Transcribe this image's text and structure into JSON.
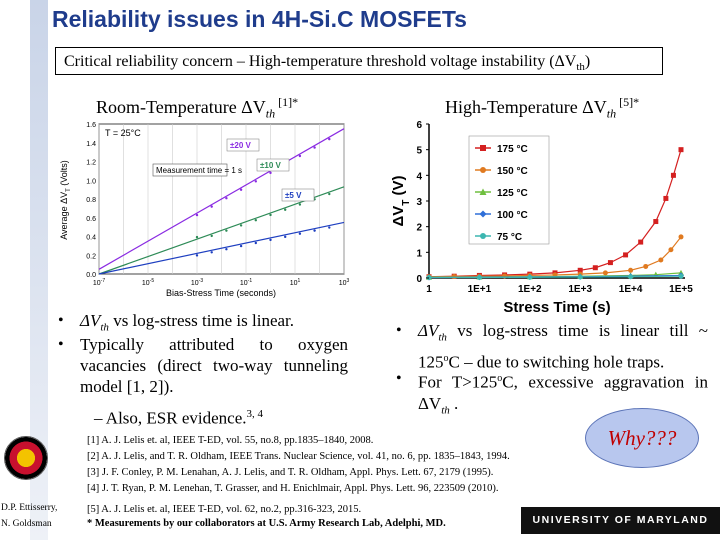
{
  "title": "Reliability issues in 4H-Si.C MOSFETs",
  "banner": "Critical reliability concern – High-temperature threshold voltage instability (ΔV",
  "banner_sub": "th",
  "banner_end": ")",
  "left": {
    "subtitle_pre": "Room-Temperature ΔV",
    "subtitle_sub": "th",
    "subtitle_sup": " [1]*",
    "bullets": [
      {
        "pre": "ΔV",
        "sub": "th",
        "post": "  vs log-stress time is linear."
      },
      {
        "pre": "",
        "sub": "",
        "post": "Typically attributed to oxygen vacancies (direct two-way tunneling model [1, 2])."
      }
    ],
    "dash_item": "–  Also, ESR evidence.",
    "dash_sup": "3, 4"
  },
  "right": {
    "subtitle_pre": "High-Temperature ΔV",
    "subtitle_sub": "th",
    "subtitle_sup": " [5]*",
    "bullet1_pre": "ΔV",
    "bullet1_sub": "th",
    "bullet1_post": "  vs log-stress time is linear till ~ 125",
    "bullet1_sup": "o",
    "bullet1_end": "C – due to switching hole traps.",
    "bullet2_pre": "For T>125",
    "bullet2_sup": "o",
    "bullet2_mid": "C, excessive aggravation in ΔV",
    "bullet2_sub": "th",
    "bullet2_end": " ."
  },
  "why": "Why???",
  "refs": [
    "[1] A. J. Lelis et. al, IEEE T-ED, vol. 55, no.8, pp.1835–1840, 2008.",
    "[2] A. J. Lelis, and T. R. Oldham, IEEE Trans. Nuclear Science, vol. 41, no. 6, pp. 1835–1843, 1994.",
    "[3] J. F. Conley, P. M. Lenahan, A. J. Lelis, and T. R. Oldham, Appl. Phys. Lett. 67, 2179 (1995).",
    "[4] J. T. Ryan, P. M. Lenehan, T. Grasser, and H. Enichlmair, Appl. Phys. Lett. 96, 223509 (2010)."
  ],
  "ref5": "[5] A. J. Lelis et. al, IEEE T-ED, vol. 62, no.2, pp.316-323, 2015.",
  "note": "* Measurements by our collaborators at U.S. Army Research Lab, Adelphi, MD.",
  "footer": "UNIVERSITY OF MARYLAND",
  "author_lines": [
    "D.P. Ettisserry,",
    "N. Goldsman"
  ],
  "colors": {
    "title": "#1f3c8c",
    "why_bg": "#b8c7ee",
    "why_text": "#c00000"
  },
  "chart_data": [
    {
      "type": "line",
      "xlabel": "Bias-Stress Time (seconds)",
      "ylabel": "Average ΔV",
      "ylabel_sub": "T",
      "ylabel_unit": " (Volts)",
      "xlim": [
        -7,
        3
      ],
      "ylim": [
        0,
        1.6
      ],
      "x_ticks": [
        {
          "base": "10",
          "exp": "-7"
        },
        {
          "base": "10",
          "exp": "-5"
        },
        {
          "base": "10",
          "exp": "-3"
        },
        {
          "base": "10",
          "exp": "-1"
        },
        {
          "base": "10",
          "exp": "1"
        },
        {
          "base": "10",
          "exp": "3"
        }
      ],
      "y_ticks": [
        "0.0",
        "0.2",
        "0.4",
        "0.6",
        "0.8",
        "1.0",
        "1.2",
        "1.4",
        "1.6"
      ],
      "annotations": {
        "temp": "T = 25°C",
        "meas": "Measurement time = 1 s"
      },
      "series": [
        {
          "name": "±20 V",
          "color": "#8a2be2",
          "x": [
            -7,
            3
          ],
          "y": [
            0.05,
            1.55
          ]
        },
        {
          "name": "±10 V",
          "color": "#2e8b57",
          "x": [
            -7,
            3
          ],
          "y": [
            0.0,
            0.93
          ]
        },
        {
          "name": "±5 V",
          "color": "#1e3fc0",
          "x": [
            -7,
            3
          ],
          "y": [
            0.0,
            0.55
          ]
        }
      ]
    },
    {
      "type": "line",
      "xlabel": "Stress Time (s)",
      "ylabel": "ΔV",
      "ylabel_sub": "T",
      "ylabel_unit": " (V)",
      "xlim": [
        0,
        5
      ],
      "ylim": [
        0,
        6
      ],
      "x_ticks": [
        "1",
        "1E+1",
        "1E+2",
        "1E+3",
        "1E+4",
        "1E+5"
      ],
      "y_ticks": [
        "0",
        "1",
        "2",
        "3",
        "4",
        "5",
        "6"
      ],
      "series": [
        {
          "name": "175 °C",
          "color": "#d42020",
          "marker": "square",
          "x": [
            0,
            0.5,
            1,
            1.5,
            2,
            2.5,
            3,
            3.3,
            3.6,
            3.9,
            4.2,
            4.5,
            4.7,
            4.85,
            5.0
          ],
          "y": [
            0.05,
            0.07,
            0.1,
            0.12,
            0.15,
            0.2,
            0.3,
            0.4,
            0.6,
            0.9,
            1.4,
            2.2,
            3.1,
            4.0,
            5.0
          ]
        },
        {
          "name": "150 °C",
          "color": "#e07a20",
          "marker": "circle",
          "x": [
            0,
            0.5,
            1,
            1.5,
            2,
            2.5,
            3,
            3.5,
            4,
            4.3,
            4.6,
            4.8,
            5.0
          ],
          "y": [
            0.05,
            0.06,
            0.07,
            0.08,
            0.1,
            0.12,
            0.15,
            0.2,
            0.3,
            0.45,
            0.7,
            1.1,
            1.6
          ]
        },
        {
          "name": "125 °C",
          "color": "#6fbf3f",
          "marker": "triangle",
          "x": [
            0,
            1,
            2,
            3,
            4,
            4.5,
            5.0
          ],
          "y": [
            0.03,
            0.04,
            0.05,
            0.07,
            0.1,
            0.13,
            0.2
          ]
        },
        {
          "name": "100 °C",
          "color": "#2f6fd8",
          "marker": "diamond",
          "x": [
            0,
            1,
            2,
            3,
            4,
            5.0
          ],
          "y": [
            0.02,
            0.03,
            0.04,
            0.05,
            0.07,
            0.1
          ]
        },
        {
          "name": "75 °C",
          "color": "#3cb6b0",
          "marker": "circle",
          "x": [
            0,
            1,
            2,
            3,
            4,
            5.0
          ],
          "y": [
            0.02,
            0.02,
            0.03,
            0.04,
            0.05,
            0.07
          ]
        }
      ]
    }
  ]
}
